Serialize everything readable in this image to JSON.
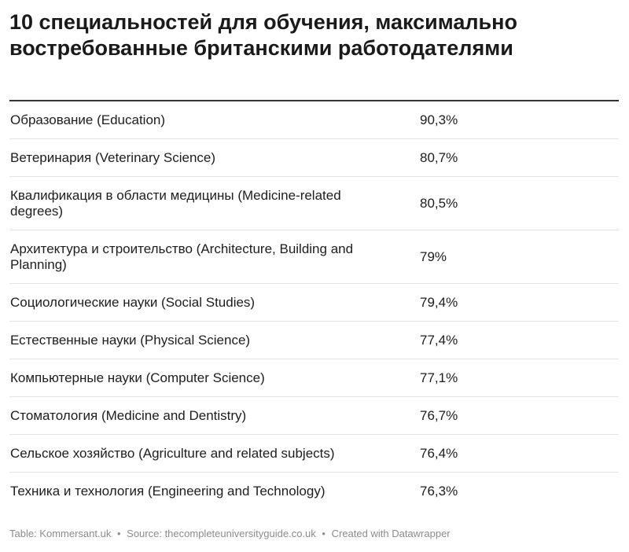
{
  "title": "10 специальностей для обучения, максимально востребованные британскими работодателями",
  "rows": [
    {
      "name": "Образование (Education)",
      "value": "90,3%"
    },
    {
      "name": "Ветеринария (Veterinary Science)",
      "value": "80,7%"
    },
    {
      "name": "Квалификация в области медицины (Medicine-related degrees)",
      "value": "80,5%"
    },
    {
      "name": "Архитектура и строительство (Architecture, Building and Planning)",
      "value": "79%"
    },
    {
      "name": "Социологические науки (Social Studies)",
      "value": "79,4%"
    },
    {
      "name": "Естественные науки (Physical Science)",
      "value": "77,4%"
    },
    {
      "name": "Компьютерные науки (Computer Science)",
      "value": "77,1%"
    },
    {
      "name": "Стоматология (Medicine and Dentistry)",
      "value": "76,7%"
    },
    {
      "name": "Сельское хозяйство (Agriculture and related subjects)",
      "value": "76,4%"
    },
    {
      "name": "Техника и технология (Engineering and Technology)",
      "value": "76,3%"
    }
  ],
  "footer": {
    "table": "Table: Kommersant.uk",
    "source": "Source: thecompleteuniversityguide.co.uk",
    "created": "Created with Datawrapper",
    "separator": "•"
  }
}
